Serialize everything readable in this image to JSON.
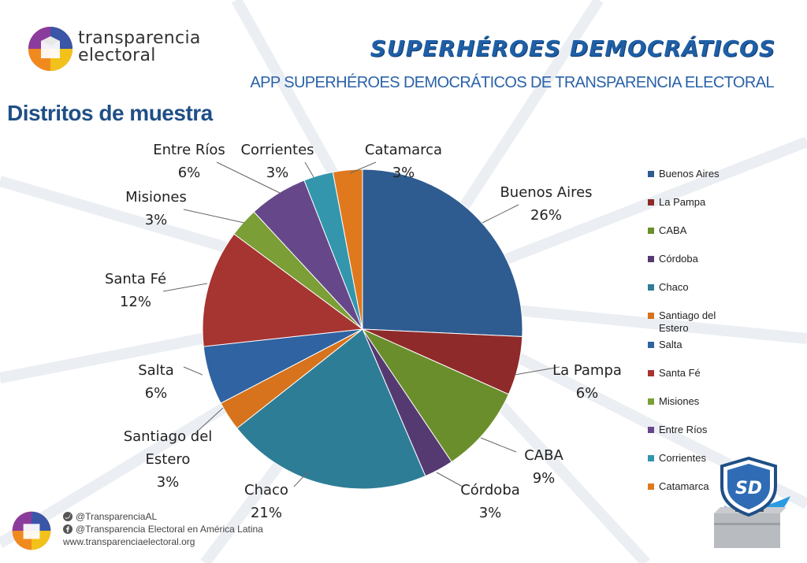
{
  "header": {
    "brand_line1": "transparencia",
    "brand_line2": "electoral",
    "hero_title": "SUPERHÉROES DEMOCRÁTICOS",
    "subtitle": "APP SUPERHÉROES DEMOCRÁTICOS DE TRANSPARENCIA ELECTORAL"
  },
  "section_title": "Distritos de muestra",
  "chart_data": {
    "type": "pie",
    "title": "",
    "categories": [
      "Buenos Aires",
      "La Pampa",
      "CABA",
      "Córdoba",
      "Chaco",
      "Santiago del Estero",
      "Salta",
      "Santa Fé",
      "Misiones",
      "Entre Ríos",
      "Corrientes",
      "Catamarca"
    ],
    "values": [
      26,
      6,
      9,
      3,
      21,
      3,
      6,
      12,
      3,
      6,
      3,
      3
    ],
    "data_labels": [
      {
        "name": [
          "Buenos Aires"
        ],
        "value": "26%"
      },
      {
        "name": [
          "La Pampa"
        ],
        "value": "6%"
      },
      {
        "name": [
          "CABA"
        ],
        "value": "9%"
      },
      {
        "name": [
          "Córdoba"
        ],
        "value": "3%"
      },
      {
        "name": [
          "Chaco"
        ],
        "value": "21%"
      },
      {
        "name": [
          "Santiago del",
          "Estero"
        ],
        "value": "3%"
      },
      {
        "name": [
          "Salta"
        ],
        "value": "6%"
      },
      {
        "name": [
          "Santa Fé"
        ],
        "value": "12%"
      },
      {
        "name": [
          "Misiones"
        ],
        "value": "3%"
      },
      {
        "name": [
          "Entre Ríos"
        ],
        "value": "6%"
      },
      {
        "name": [
          "Corrientes"
        ],
        "value": "3%"
      },
      {
        "name": [
          "Catamarca"
        ],
        "value": "3%"
      }
    ],
    "colors": [
      "#2e5b90",
      "#8f2a2a",
      "#6b8e2c",
      "#553a72",
      "#2e7d97",
      "#d6731c",
      "#2f63a2",
      "#a63431",
      "#7b9e37",
      "#66488a",
      "#3396ad",
      "#e0791e"
    ],
    "legend": {
      "placement": "right",
      "entries": [
        "Buenos Aires",
        "La Pampa",
        "CABA",
        "Córdoba",
        "Chaco",
        "Santiago del Estero",
        "Salta",
        "Santa Fé",
        "Misiones",
        "Entre Ríos",
        "Corrientes",
        "Catamarca"
      ]
    }
  },
  "footer": {
    "twitter": "@TransparenciaAL",
    "facebook": "@Transparencia Electoral en América Latina",
    "website": "www.transparenciaelectoral.org"
  },
  "badge": {
    "text": "SD"
  },
  "icons": {
    "twitter": "twitter-icon",
    "facebook": "facebook-icon",
    "ballot_box": "ballot-box-icon"
  }
}
